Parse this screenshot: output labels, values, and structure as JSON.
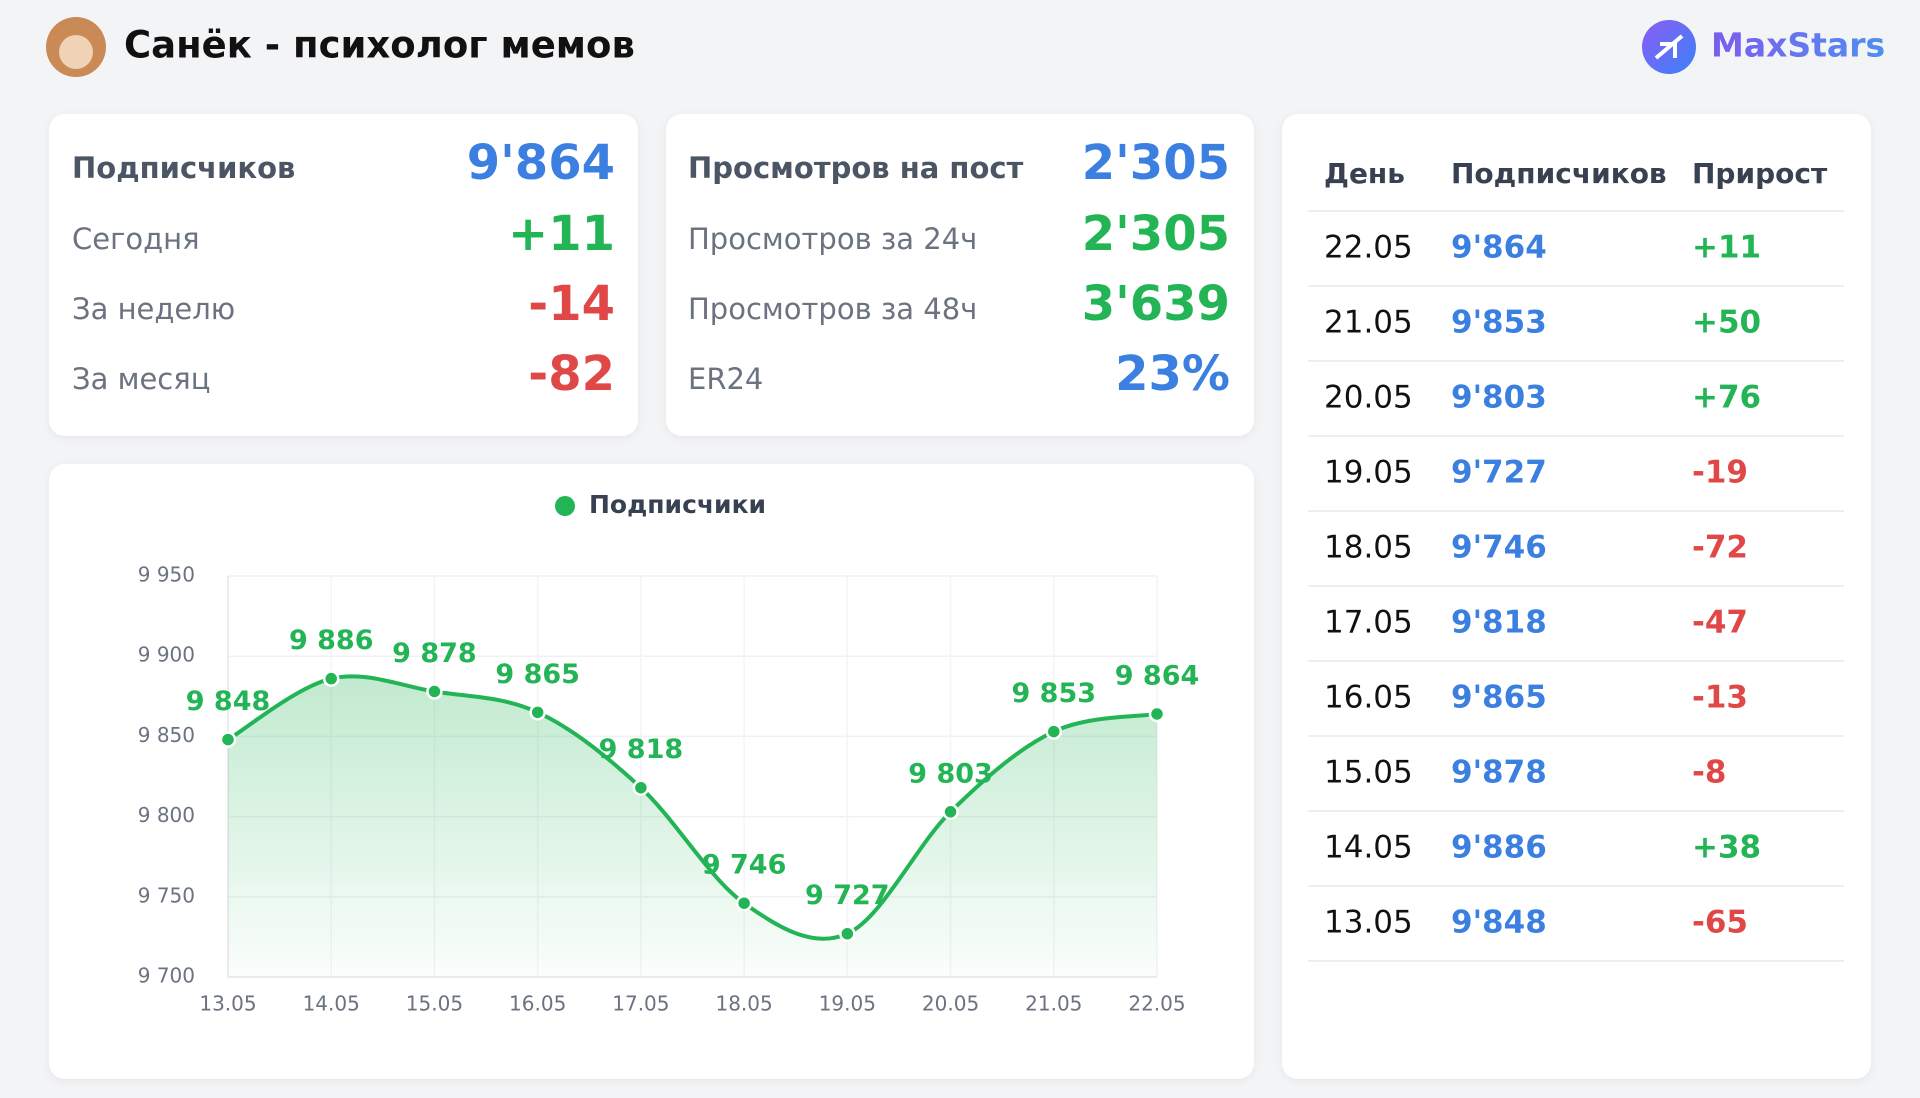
{
  "header": {
    "title": "Санёк - психолог мемов",
    "brand": "MaxStars"
  },
  "cards": [
    {
      "rows": [
        {
          "label": "Подписчиков",
          "value": "9'864",
          "color": "#3b7fe0"
        },
        {
          "label": "Сегодня",
          "value": "+11",
          "color": "#22b455"
        },
        {
          "label": "За неделю",
          "value": "-14",
          "color": "#e04848"
        },
        {
          "label": "За месяц",
          "value": "-82",
          "color": "#e04848"
        }
      ]
    },
    {
      "rows": [
        {
          "label": "Просмотров на пост",
          "value": "2'305",
          "color": "#3b7fe0"
        },
        {
          "label": "Просмотров за 24ч",
          "value": "2'305",
          "color": "#22b455"
        },
        {
          "label": "Просмотров за 48ч",
          "value": "3'639",
          "color": "#22b455"
        },
        {
          "label": "ER24",
          "value": "23%",
          "color": "#3b7fe0"
        }
      ]
    }
  ],
  "table": {
    "headers": [
      "День",
      "Подписчиков",
      "Прирост"
    ],
    "rows": [
      {
        "day": "22.05",
        "subscribers": "9'864",
        "growth": "+11",
        "color": "#22b455"
      },
      {
        "day": "21.05",
        "subscribers": "9'853",
        "growth": "+50",
        "color": "#22b455"
      },
      {
        "day": "20.05",
        "subscribers": "9'803",
        "growth": "+76",
        "color": "#22b455"
      },
      {
        "day": "19.05",
        "subscribers": "9'727",
        "growth": "-19",
        "color": "#e04848"
      },
      {
        "day": "18.05",
        "subscribers": "9'746",
        "growth": "-72",
        "color": "#e04848"
      },
      {
        "day": "17.05",
        "subscribers": "9'818",
        "growth": "-47",
        "color": "#e04848"
      },
      {
        "day": "16.05",
        "subscribers": "9'865",
        "growth": "-13",
        "color": "#e04848"
      },
      {
        "day": "15.05",
        "subscribers": "9'878",
        "growth": "-8",
        "color": "#e04848"
      },
      {
        "day": "14.05",
        "subscribers": "9'886",
        "growth": "+38",
        "color": "#22b455"
      },
      {
        "day": "13.05",
        "subscribers": "9'848",
        "growth": "-65",
        "color": "#e04848"
      }
    ]
  },
  "chart_data": {
    "type": "line",
    "categories": [
      "13.05",
      "14.05",
      "15.05",
      "16.05",
      "17.05",
      "18.05",
      "19.05",
      "20.05",
      "21.05",
      "22.05"
    ],
    "series": [
      {
        "name": "Подписчики",
        "color": "#22b455",
        "values": [
          9848,
          9886,
          9878,
          9865,
          9818,
          9746,
          9727,
          9803,
          9853,
          9864
        ],
        "value_labels": [
          "9 848",
          "9 886",
          "9 878",
          "9 865",
          "9 818",
          "9 746",
          "9 727",
          "9 803",
          "9 853",
          "9 864"
        ]
      }
    ],
    "ylim": [
      9700,
      9950
    ],
    "yticks": [
      {
        "value": 9700,
        "label": "9 700"
      },
      {
        "value": 9750,
        "label": "9 750"
      },
      {
        "value": 9800,
        "label": "9 800"
      },
      {
        "value": 9850,
        "label": "9 850"
      },
      {
        "value": 9900,
        "label": "9 900"
      },
      {
        "value": 9950,
        "label": "9 950"
      }
    ],
    "grid": true
  }
}
